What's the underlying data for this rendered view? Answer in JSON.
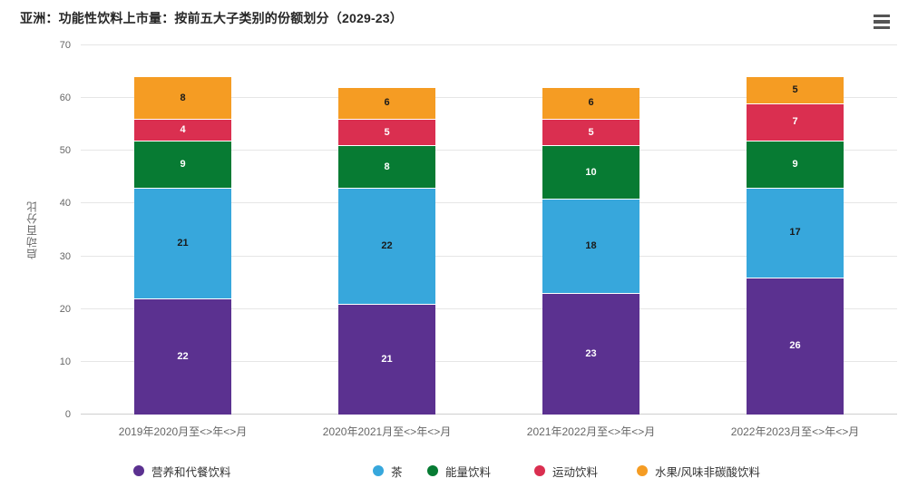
{
  "title": "亚洲：功能性饮料上市量：按前五大子类别的份额划分（2029-23）",
  "menu": {
    "icon": "hamburger-menu-icon",
    "color": "#555555"
  },
  "chart_data": {
    "type": "bar",
    "stacked": true,
    "title": "亚洲：功能性饮料上市量：按前五大子类别的份额划分（2029-23）",
    "xlabel": "",
    "ylabel": "启动百分比",
    "ylim": [
      0,
      70
    ],
    "yticks": [
      0,
      10,
      20,
      30,
      40,
      50,
      60,
      70
    ],
    "grid": true,
    "grid_color": "#e6e6e6",
    "axis_line_color": "#cfcfcf",
    "tick_label_color": "#666666",
    "legend_position": "bottom",
    "legend_text_color": "#333333",
    "categories": [
      "2019年2020月至<>年<>月",
      "2020年2021月至<>年<>月",
      "2021年2022月至<>年<>月",
      "2022年2023月至<>年<>月"
    ],
    "series": [
      {
        "name": "营养和代餐饮料",
        "color": "#5b3190",
        "label_color": "#ffffff",
        "values": [
          22,
          21,
          23,
          26
        ]
      },
      {
        "name": "茶",
        "color": "#37a7dc",
        "label_color": "#1a1a1a",
        "values": [
          21,
          22,
          18,
          17
        ]
      },
      {
        "name": "能量饮料",
        "color": "#077b33",
        "label_color": "#ffffff",
        "values": [
          9,
          8,
          10,
          9
        ]
      },
      {
        "name": "运动饮料",
        "color": "#da2f50",
        "label_color": "#ffffff",
        "values": [
          4,
          5,
          5,
          7
        ]
      },
      {
        "name": "水果/风味非碳酸饮料",
        "color": "#f59c23",
        "label_color": "#1a1a1a",
        "values": [
          8,
          6,
          6,
          5
        ]
      }
    ],
    "totals": [
      64,
      62,
      62,
      64
    ]
  },
  "layout_note_values_are_percent": "启动百分比"
}
